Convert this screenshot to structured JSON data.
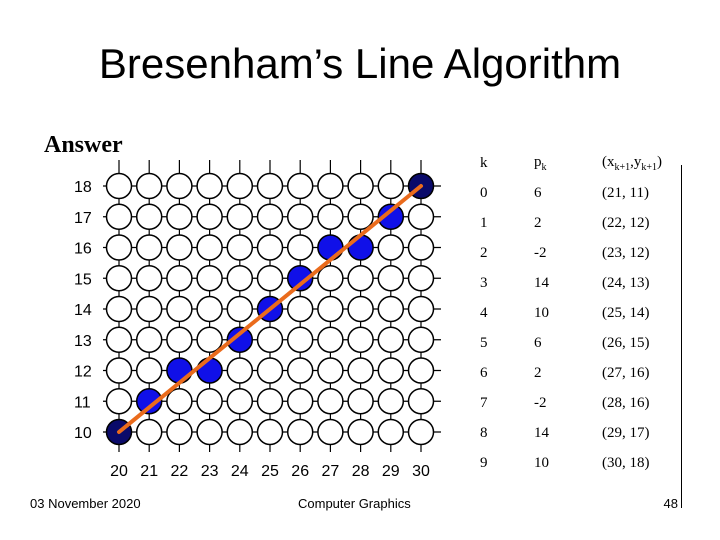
{
  "slide": {
    "title": "Bresenham’s Line Algorithm",
    "subtitle": "Answer",
    "footer_date": "03 November 2020",
    "footer_course": "Computer Graphics",
    "page_number": "48"
  },
  "grid": {
    "x_labels": [
      "20",
      "21",
      "22",
      "23",
      "24",
      "25",
      "26",
      "27",
      "28",
      "29",
      "30"
    ],
    "y_labels": [
      "18",
      "17",
      "16",
      "15",
      "14",
      "13",
      "12",
      "11",
      "10"
    ],
    "x_range": [
      20,
      30
    ],
    "y_range": [
      10,
      18
    ],
    "start_point": [
      20,
      10
    ],
    "end_point": [
      30,
      18
    ],
    "filled_color": "#1010e8",
    "endpoint_color": "#0a0a6a",
    "line_color": "#ea6b1c",
    "plotted_points": [
      [
        20,
        10
      ],
      [
        21,
        11
      ],
      [
        22,
        12
      ],
      [
        23,
        12
      ],
      [
        24,
        13
      ],
      [
        25,
        14
      ],
      [
        26,
        15
      ],
      [
        27,
        16
      ],
      [
        28,
        16
      ],
      [
        29,
        17
      ],
      [
        30,
        18
      ]
    ]
  },
  "table": {
    "headers": {
      "k": "k",
      "p": "p",
      "p_sub": "k",
      "xy": "(x",
      "x_sub": "k+1",
      "comma": ",y",
      "y_sub": "k+1",
      "close": ")"
    },
    "rows": [
      {
        "k": "0",
        "p": "6",
        "xy": "(21, 11)"
      },
      {
        "k": "1",
        "p": "2",
        "xy": "(22, 12)"
      },
      {
        "k": "2",
        "p": "-2",
        "xy": "(23, 12)"
      },
      {
        "k": "3",
        "p": "14",
        "xy": "(24, 13)"
      },
      {
        "k": "4",
        "p": "10",
        "xy": "(25, 14)"
      },
      {
        "k": "5",
        "p": "6",
        "xy": "(26, 15)"
      },
      {
        "k": "6",
        "p": "2",
        "xy": "(27, 16)"
      },
      {
        "k": "7",
        "p": "-2",
        "xy": "(28, 16)"
      },
      {
        "k": "8",
        "p": "14",
        "xy": "(29, 17)"
      },
      {
        "k": "9",
        "p": "10",
        "xy": "(30, 18)"
      }
    ]
  }
}
